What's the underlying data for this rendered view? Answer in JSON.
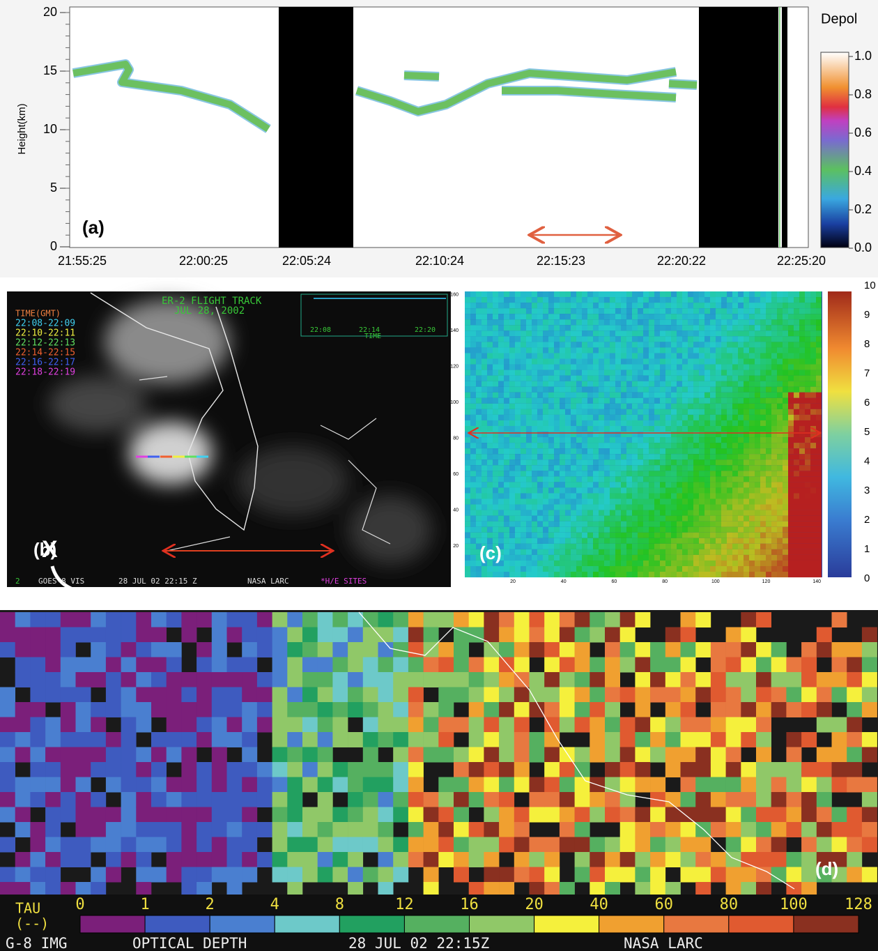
{
  "panel_a": {
    "label": "(a)",
    "y_axis_label": "Height(km)",
    "yticks": [
      "20",
      "15",
      "10",
      "5",
      "0"
    ],
    "xticks": [
      "21:55:25",
      "22:00:25",
      "22:05:24",
      "22:10:24",
      "22:15:23",
      "22:20:22",
      "22:25:20"
    ],
    "colorbar_title": "Depol",
    "colorbar_ticks": [
      "1.0",
      "0.8",
      "0.6",
      "0.4",
      "0.2",
      "0.0"
    ]
  },
  "panel_b": {
    "label": "(b)",
    "title": "ER-2 FLIGHT TRACK",
    "date": "JUL 28, 2002",
    "legend_title": "TIME(GMT)",
    "legend": [
      "22:08-22:09",
      "22:10-22:11",
      "22:12-22:13",
      "22:14-22:15",
      "22:16-22:17",
      "22:18-22:19"
    ],
    "inset_x_label": "TIME",
    "inset_xticks": [
      "22:08",
      "22:14",
      "22:20"
    ],
    "footer": [
      "2",
      "GOES-8 VIS",
      "28 JUL 02 22:15 Z",
      "NASA LARC",
      "*H/E SITES"
    ]
  },
  "panel_c": {
    "label": "(c)",
    "colorbar_ticks": [
      "10",
      "9",
      "8",
      "7",
      "6",
      "5",
      "4",
      "3",
      "2",
      "1",
      "0"
    ],
    "xticks": [
      "20",
      "40",
      "60",
      "80",
      "100",
      "120",
      "140"
    ],
    "yticks": [
      "20",
      "40",
      "60",
      "80",
      "100",
      "120",
      "140",
      "160"
    ]
  },
  "panel_d": {
    "label": "(d)",
    "marker": "X",
    "legend_title": "TAU",
    "legend_unit": "(--)",
    "scale_ticks": [
      "0",
      "1",
      "2",
      "4",
      "8",
      "12",
      "16",
      "20",
      "40",
      "60",
      "80",
      "100",
      "128"
    ],
    "footer": [
      "G-8 IMG",
      "OPTICAL DEPTH",
      "28 JUL 02 22:15Z",
      "NASA LARC"
    ]
  }
}
